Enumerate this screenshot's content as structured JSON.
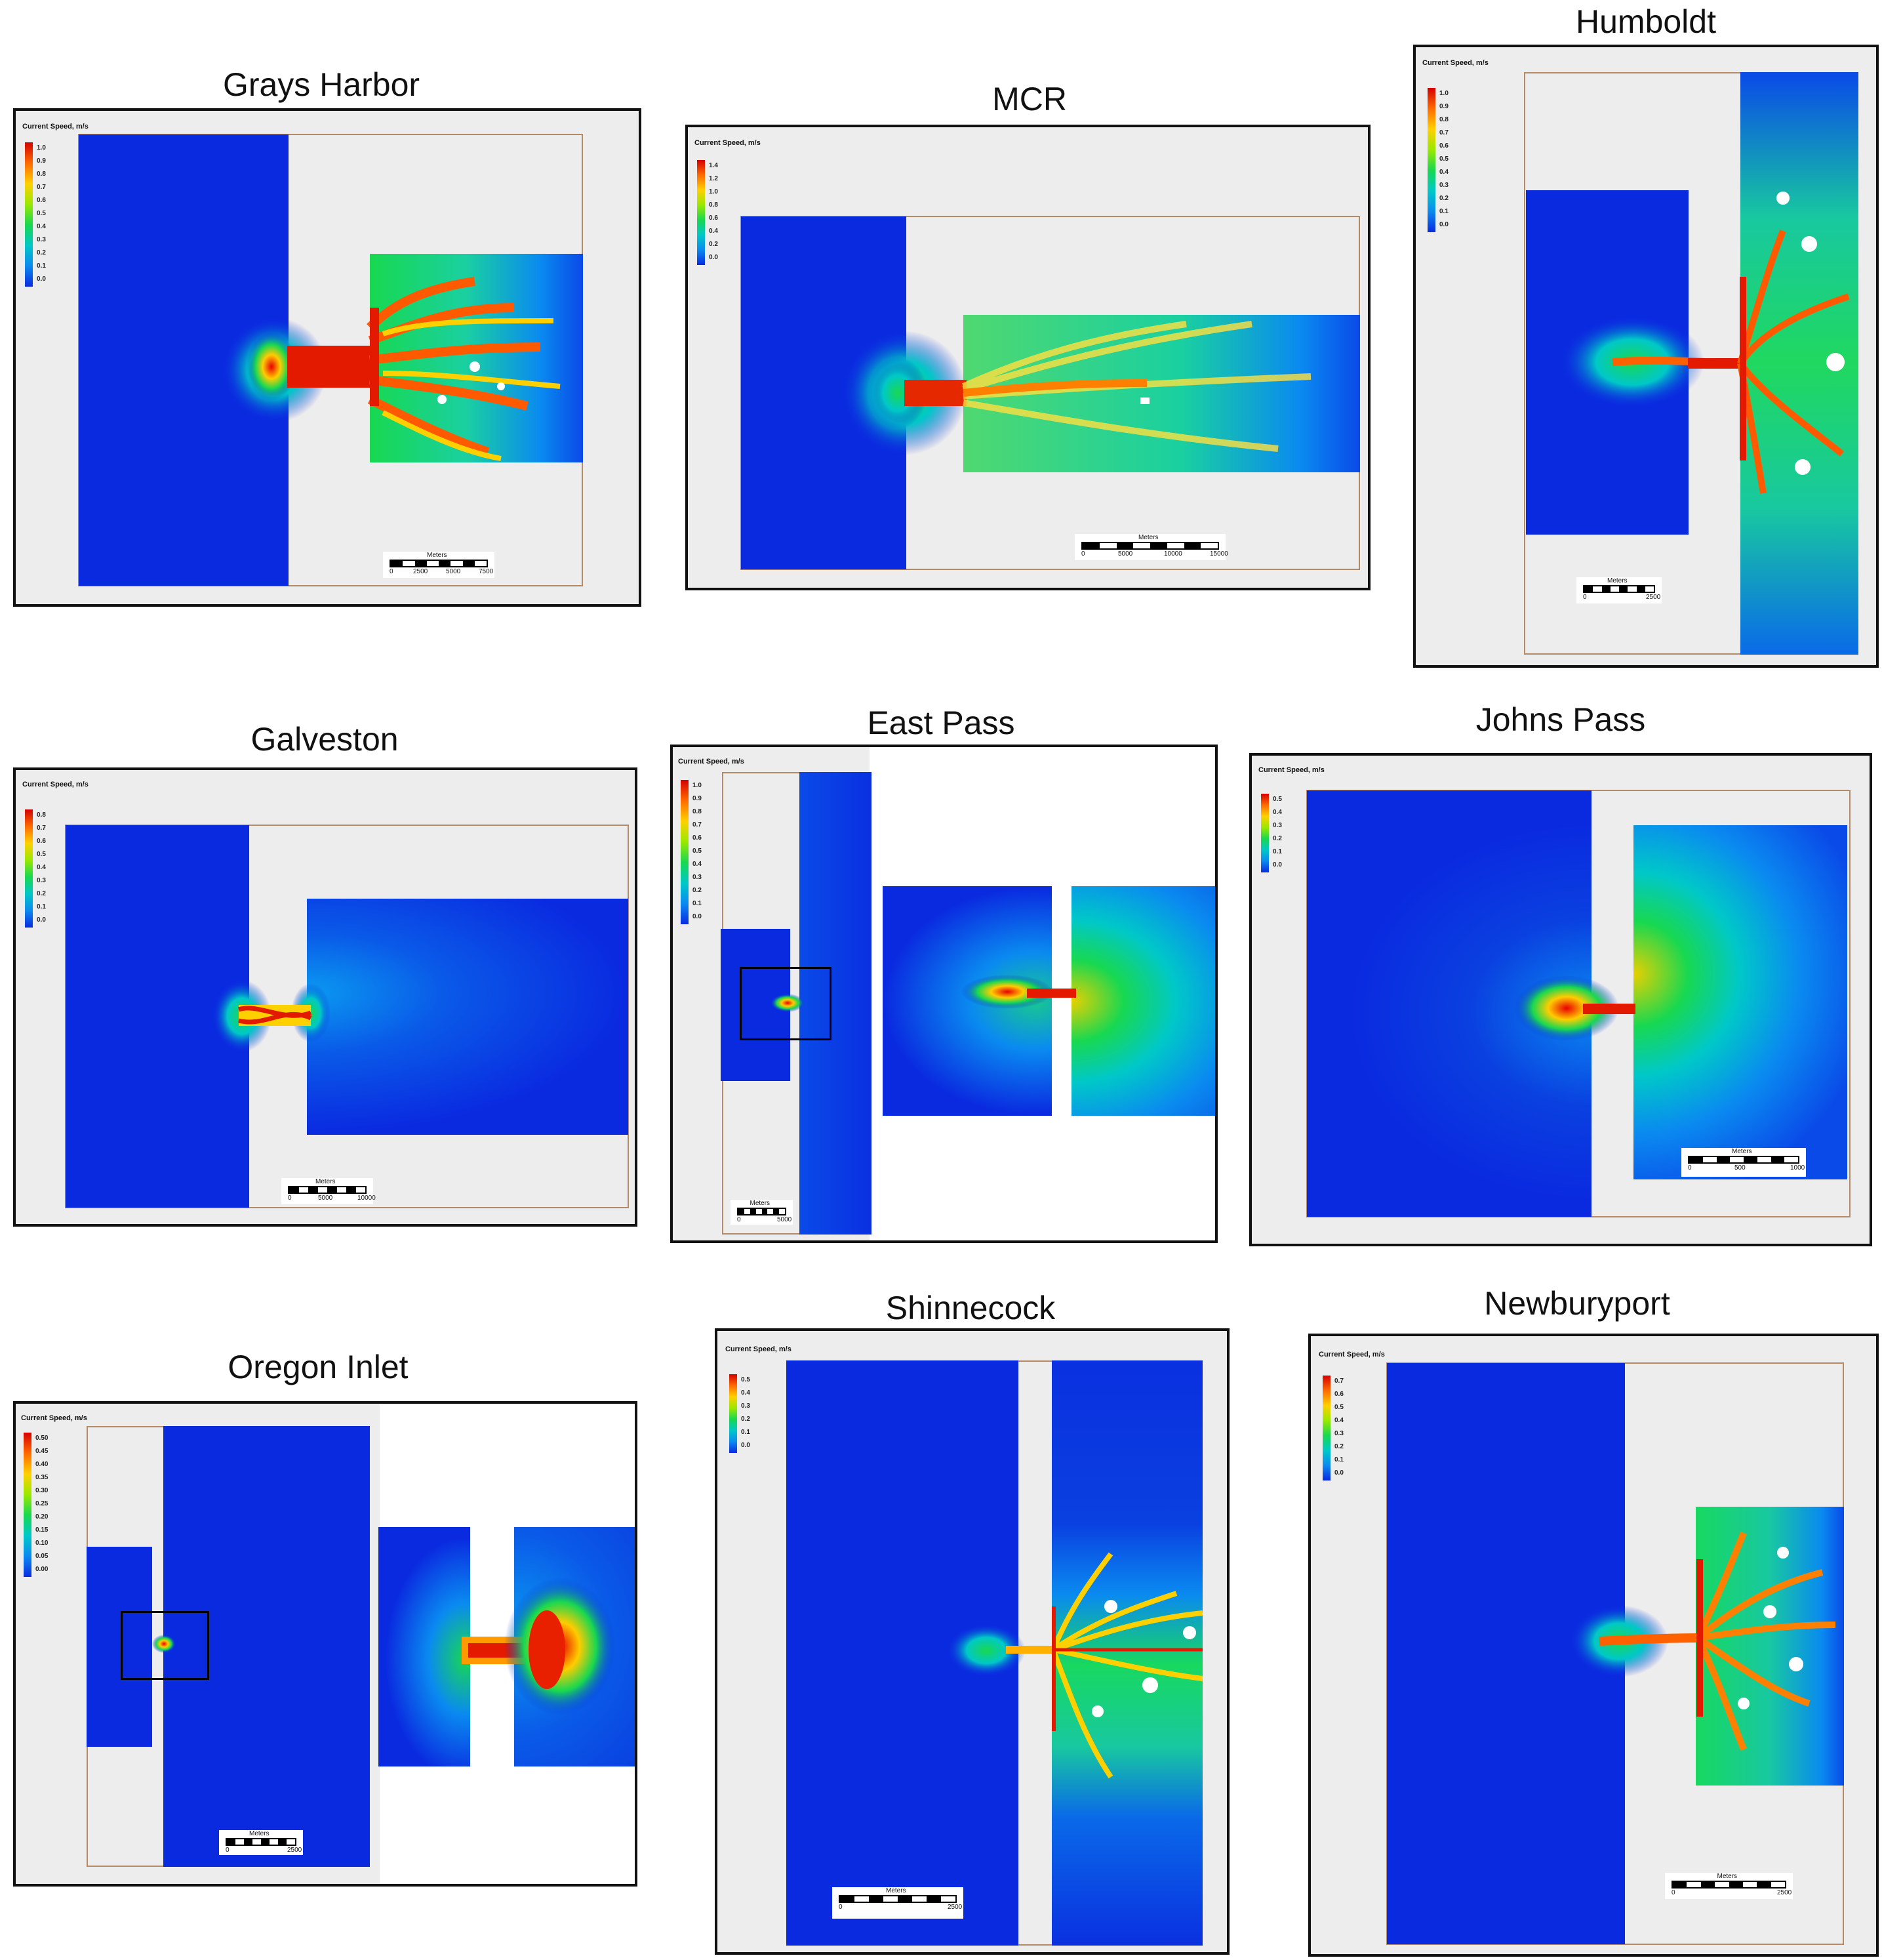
{
  "titles": {
    "grays_harbor": "Grays Harbor",
    "mcr": "MCR",
    "humboldt": "Humboldt",
    "galveston": "Galveston",
    "east_pass": "East Pass",
    "johns_pass": "Johns Pass",
    "oregon_inlet": "Oregon Inlet",
    "shinnecock": "Shinnecock",
    "newburyport": "Newburyport"
  },
  "legend_title": "Current Speed, m/s",
  "scale_title": "Meters",
  "legends": {
    "grays_harbor": [
      "1.0",
      "0.9",
      "0.8",
      "0.7",
      "0.6",
      "0.5",
      "0.4",
      "0.3",
      "0.2",
      "0.1",
      "0.0"
    ],
    "mcr": [
      "1.4",
      "1.2",
      "1.0",
      "0.8",
      "0.6",
      "0.4",
      "0.2",
      "0.0"
    ],
    "humboldt": [
      "1.0",
      "0.9",
      "0.8",
      "0.7",
      "0.6",
      "0.5",
      "0.4",
      "0.3",
      "0.2",
      "0.1",
      "0.0"
    ],
    "galveston": [
      "0.8",
      "0.7",
      "0.6",
      "0.5",
      "0.4",
      "0.3",
      "0.2",
      "0.1",
      "0.0"
    ],
    "east_pass": [
      "1.0",
      "0.9",
      "0.8",
      "0.7",
      "0.6",
      "0.5",
      "0.4",
      "0.3",
      "0.2",
      "0.1",
      "0.0"
    ],
    "johns_pass": [
      "0.5",
      "0.4",
      "0.3",
      "0.2",
      "0.1",
      "0.0"
    ],
    "oregon_inlet": [
      "0.50",
      "0.45",
      "0.40",
      "0.35",
      "0.30",
      "0.25",
      "0.20",
      "0.15",
      "0.10",
      "0.05",
      "0.00"
    ],
    "shinnecock": [
      "0.5",
      "0.4",
      "0.3",
      "0.2",
      "0.1",
      "0.0"
    ],
    "newburyport": [
      "0.7",
      "0.6",
      "0.5",
      "0.4",
      "0.3",
      "0.2",
      "0.1",
      "0.0"
    ]
  },
  "scales": {
    "grays_harbor": [
      "0",
      "2500",
      "5000",
      "7500"
    ],
    "mcr": [
      "0",
      "5000",
      "10000",
      "15000"
    ],
    "humboldt": [
      "0",
      "2500"
    ],
    "galveston": [
      "0",
      "5000",
      "10000"
    ],
    "east_pass": [
      "0",
      "5000"
    ],
    "johns_pass": [
      "0",
      "500",
      "1000"
    ],
    "oregon_inlet": [
      "0",
      "2500"
    ],
    "shinnecock": [
      "0",
      "2500"
    ],
    "newburyport": [
      "0",
      "2500"
    ]
  },
  "colors": {
    "deep_blue": "#0a2ae0",
    "jet_ramp": [
      "#d40000",
      "#ff6a00",
      "#ffd000",
      "#9be800",
      "#18d850",
      "#00c8c8",
      "#0a8af0",
      "#0a2ae0"
    ]
  }
}
